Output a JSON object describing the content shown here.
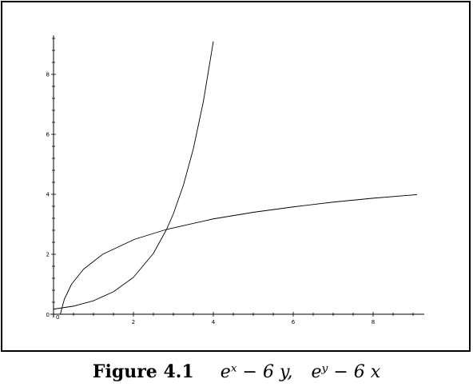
{
  "chart_data": {
    "type": "line",
    "xlim": [
      0,
      9.2
    ],
    "ylim": [
      0,
      9.3
    ],
    "x_ticks": [
      0,
      2,
      4,
      6,
      8
    ],
    "x_tick_labels": [
      "0",
      "2",
      "4",
      "6",
      "8"
    ],
    "y_ticks": [
      0,
      2,
      4,
      6,
      8
    ],
    "y_tick_labels": [
      "0",
      "2",
      "4",
      "6",
      "8"
    ],
    "grid": false,
    "series": [
      {
        "x": [
          0.0,
          0.5,
          1.0,
          1.5,
          2.0,
          2.5,
          2.83,
          3.0,
          3.25,
          3.5,
          3.75,
          4.0
        ],
        "y": [
          0.17,
          0.27,
          0.45,
          0.75,
          1.23,
          2.03,
          2.83,
          3.35,
          4.3,
          5.52,
          7.09,
          9.1
        ]
      },
      {
        "x": [
          0.17,
          0.27,
          0.45,
          0.75,
          1.23,
          2.03,
          2.83,
          4.0,
          5.0,
          6.0,
          7.0,
          8.0,
          9.1
        ],
        "y": [
          0.0,
          0.5,
          1.0,
          1.5,
          2.0,
          2.5,
          2.83,
          3.18,
          3.4,
          3.58,
          3.74,
          3.87,
          3.99
        ]
      }
    ]
  },
  "caption": {
    "label": "Figure 4.1",
    "expr1": "eˣ − 6 y,",
    "expr2": "eʸ − 6 x"
  }
}
